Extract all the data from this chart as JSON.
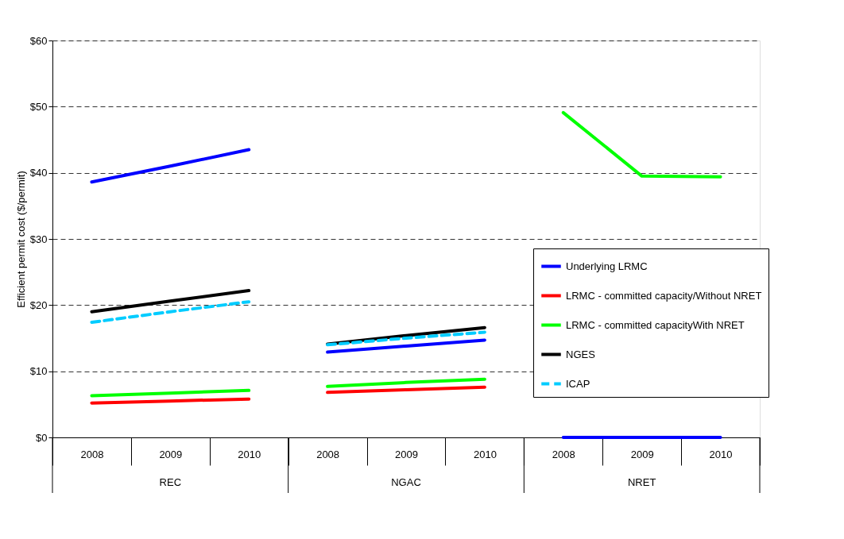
{
  "chart_data": {
    "type": "line",
    "ylabel": "Efficient permit cost ($/permit)",
    "categories": [
      "2008",
      "2009",
      "2010",
      "2008",
      "2009",
      "2010",
      "2008",
      "2009",
      "2010"
    ],
    "annotations": [
      "REC",
      "NGAC",
      "NRET"
    ],
    "ylim": [
      0,
      60
    ],
    "yticks": [
      {
        "value": 0,
        "label": "$0"
      },
      {
        "value": 10,
        "label": "$10"
      },
      {
        "value": 20,
        "label": "$20"
      },
      {
        "value": 30,
        "label": "$30"
      },
      {
        "value": 40,
        "label": "$40"
      },
      {
        "value": 50,
        "label": "$50"
      },
      {
        "value": 60,
        "label": "$60"
      }
    ],
    "grid": "y",
    "legend": "right",
    "series": [
      {
        "name": "Underlying LRMC",
        "color": "#0000ff",
        "line_style": "solid",
        "values": [
          38.6,
          41.0,
          43.5,
          12.9,
          13.8,
          14.7,
          0,
          0,
          0
        ]
      },
      {
        "name": "LRMC - committed capacity/Without NRET",
        "color": "#ff0000",
        "line_style": "solid",
        "values": [
          5.2,
          5.5,
          5.8,
          6.8,
          7.2,
          7.6,
          null,
          null,
          null
        ]
      },
      {
        "name": "LRMC - committed capacityWith NRET",
        "color": "#00ff00",
        "line_style": "solid",
        "values": [
          6.3,
          6.7,
          7.1,
          7.7,
          8.3,
          8.8,
          49.1,
          39.5,
          39.4
        ]
      },
      {
        "name": "NGES",
        "color": "#000000",
        "line_style": "solid",
        "values": [
          19.0,
          20.6,
          22.2,
          14.1,
          15.4,
          16.6,
          null,
          null,
          null
        ]
      },
      {
        "name": "ICAP",
        "color": "#00ccff",
        "line_style": "dashed",
        "values": [
          17.4,
          19.0,
          20.5,
          14.0,
          15.0,
          15.9,
          null,
          null,
          null
        ]
      }
    ]
  }
}
